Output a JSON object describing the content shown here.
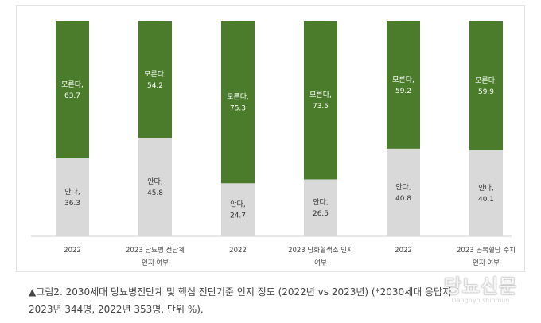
{
  "chart_data": {
    "type": "bar",
    "stacked": true,
    "categories": [
      [
        "2022"
      ],
      [
        "2023 당뇨병 전단계",
        "인지 여부"
      ],
      [
        "2022"
      ],
      [
        "2023 당화혈색소 인지",
        "여부"
      ],
      [
        "2022"
      ],
      [
        "2023 공복혈당 수치",
        "인지 여부"
      ]
    ],
    "series": [
      {
        "name": "안다",
        "values": [
          36.3,
          45.8,
          24.7,
          26.5,
          40.8,
          40.1
        ]
      },
      {
        "name": "모른다",
        "values": [
          63.7,
          54.2,
          75.3,
          73.5,
          59.2,
          59.9
        ]
      }
    ],
    "ylim": [
      0,
      100
    ],
    "grid": false,
    "colors": {
      "모른다": "#4a7c2b",
      "안다": "#d9d9d9"
    }
  },
  "caption": {
    "line1": "▲그림2. 2030세대 당뇨병전단계 및 핵심 진단기준 인지 정도 (2022년 vs 2023년) (*2030세대 응답자",
    "line2": "2023년 344명, 2022년 353명, 단위 %)."
  },
  "watermark": {
    "title": "당뇨신문",
    "subtitle": "Dangnyo shinmun"
  }
}
